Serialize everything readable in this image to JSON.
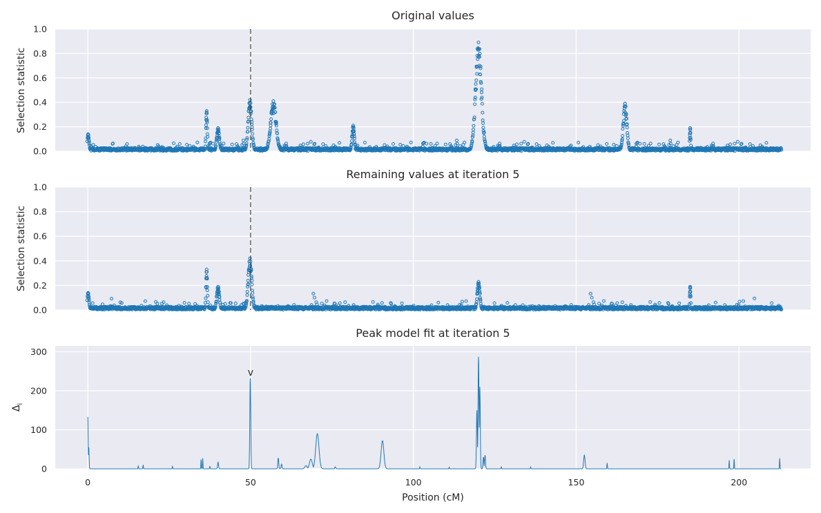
{
  "figure": {
    "xlabel": "Position (cM)",
    "xlim": [
      -10,
      222
    ],
    "xticks": [
      0,
      50,
      100,
      150,
      200
    ],
    "grid": true,
    "style": "seaborn-darkgrid",
    "colors": {
      "face": "#eaeaf2",
      "grid": "#ffffff",
      "series": "#1f77b4",
      "marker_line": "#222222"
    }
  },
  "chart_data": [
    {
      "type": "scatter",
      "title": "Original values",
      "ylabel": "Selection statistic",
      "ylim": [
        0,
        1
      ],
      "yticks": [
        "0.0",
        "0.2",
        "0.4",
        "0.6",
        "0.8",
        "1.0"
      ],
      "marker_line_x": 50,
      "marker_style": "open circles",
      "baseline": 0.02,
      "peaks": [
        {
          "x": 0.1,
          "y": 0.14,
          "width": 0.4
        },
        {
          "x": 36.5,
          "y": 0.33,
          "width": 0.3
        },
        {
          "x": 40,
          "y": 0.19,
          "width": 0.6
        },
        {
          "x": 49.8,
          "y": 0.42,
          "width": 0.8
        },
        {
          "x": 57,
          "y": 0.41,
          "width": 1.2
        },
        {
          "x": 81.5,
          "y": 0.21,
          "width": 0.5
        },
        {
          "x": 120,
          "y": 0.89,
          "width": 1.3
        },
        {
          "x": 165,
          "y": 0.39,
          "width": 0.8
        },
        {
          "x": 185,
          "y": 0.19,
          "width": 0.2
        }
      ],
      "x_range": [
        0,
        213
      ]
    },
    {
      "type": "scatter",
      "title": "Remaining values at iteration 5",
      "ylabel": "Selection statistic",
      "ylim": [
        0,
        1
      ],
      "yticks": [
        "0.0",
        "0.2",
        "0.4",
        "0.6",
        "0.8",
        "1.0"
      ],
      "marker_line_x": 50,
      "marker_style": "open circles",
      "baseline": 0.02,
      "peaks": [
        {
          "x": 0.1,
          "y": 0.14,
          "width": 0.4
        },
        {
          "x": 36.5,
          "y": 0.33,
          "width": 0.3
        },
        {
          "x": 40,
          "y": 0.19,
          "width": 0.6
        },
        {
          "x": 49.8,
          "y": 0.42,
          "width": 0.8
        },
        {
          "x": 120,
          "y": 0.23,
          "width": 0.6
        },
        {
          "x": 185,
          "y": 0.19,
          "width": 0.2
        }
      ],
      "x_range": [
        0,
        213
      ]
    },
    {
      "type": "line",
      "title": "Peak model fit at iteration 5",
      "ylabel": "Δi",
      "ylim": [
        0,
        315
      ],
      "yticks": [
        "0",
        "100",
        "200",
        "300"
      ],
      "marker": {
        "x": 50,
        "y": 232,
        "label": "v"
      },
      "spikes": [
        {
          "x": 0,
          "y": 133,
          "width": 0.15
        },
        {
          "x": 0.3,
          "y": 55,
          "width": 0.15
        },
        {
          "x": 15.5,
          "y": 7,
          "width": 0.1
        },
        {
          "x": 17,
          "y": 10,
          "width": 0.1
        },
        {
          "x": 26,
          "y": 6,
          "width": 0.1
        },
        {
          "x": 34.8,
          "y": 24,
          "width": 0.1
        },
        {
          "x": 35.3,
          "y": 27,
          "width": 0.1
        },
        {
          "x": 37.5,
          "y": 7,
          "width": 0.1
        },
        {
          "x": 40,
          "y": 17,
          "width": 0.2
        },
        {
          "x": 49.9,
          "y": 232,
          "width": 0.2
        },
        {
          "x": 58.5,
          "y": 28,
          "width": 0.2
        },
        {
          "x": 59.5,
          "y": 12,
          "width": 0.2
        },
        {
          "x": 67,
          "y": 8,
          "width": 0.5
        },
        {
          "x": 68.5,
          "y": 25,
          "width": 0.6
        },
        {
          "x": 70.5,
          "y": 90,
          "width": 0.7
        },
        {
          "x": 76,
          "y": 5,
          "width": 0.2
        },
        {
          "x": 90.5,
          "y": 72,
          "width": 0.6
        },
        {
          "x": 102,
          "y": 5,
          "width": 0.1
        },
        {
          "x": 111,
          "y": 4,
          "width": 0.1
        },
        {
          "x": 119.5,
          "y": 150,
          "width": 0.2
        },
        {
          "x": 120,
          "y": 287,
          "width": 0.2
        },
        {
          "x": 120.4,
          "y": 210,
          "width": 0.2
        },
        {
          "x": 121.5,
          "y": 30,
          "width": 0.2
        },
        {
          "x": 122,
          "y": 35,
          "width": 0.2
        },
        {
          "x": 127,
          "y": 5,
          "width": 0.1
        },
        {
          "x": 136,
          "y": 5,
          "width": 0.1
        },
        {
          "x": 152.5,
          "y": 35,
          "width": 0.3
        },
        {
          "x": 159.5,
          "y": 15,
          "width": 0.1
        },
        {
          "x": 197,
          "y": 22,
          "width": 0.1
        },
        {
          "x": 198.5,
          "y": 25,
          "width": 0.1
        },
        {
          "x": 212.5,
          "y": 27,
          "width": 0.1
        }
      ]
    }
  ]
}
